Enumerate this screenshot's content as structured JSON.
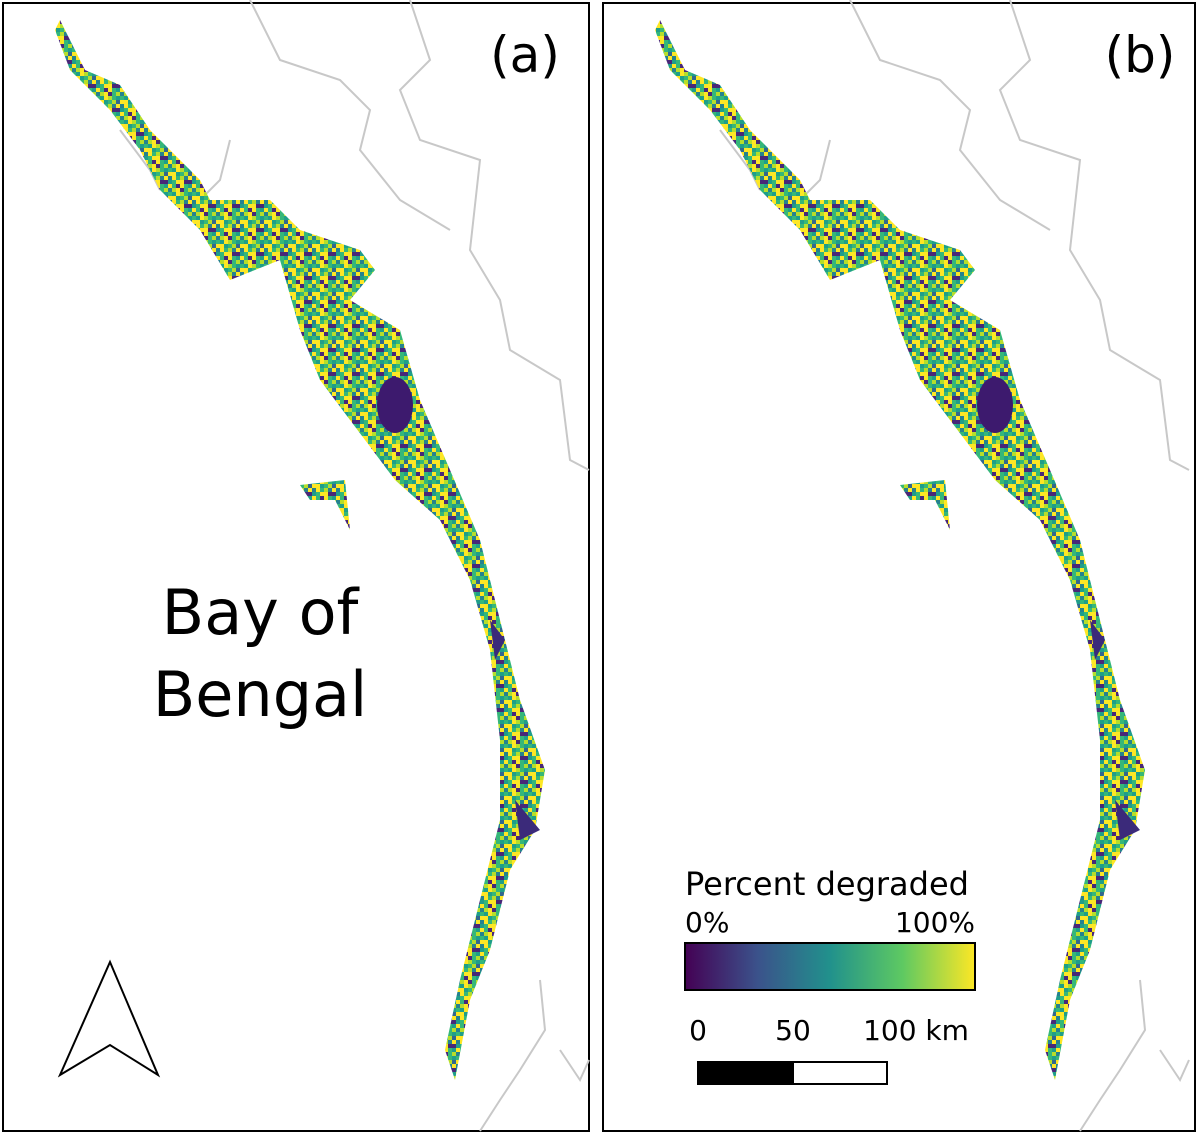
{
  "panels": [
    {
      "label": "(a)"
    },
    {
      "label": "(b)"
    }
  ],
  "annotations": {
    "sea_label": [
      "Bay of",
      "Bengal"
    ]
  },
  "legend": {
    "title": "Percent degraded",
    "min_label": "0%",
    "max_label": "100%"
  },
  "scale_bar": {
    "labels": [
      "0",
      "50",
      "100 km"
    ]
  }
}
